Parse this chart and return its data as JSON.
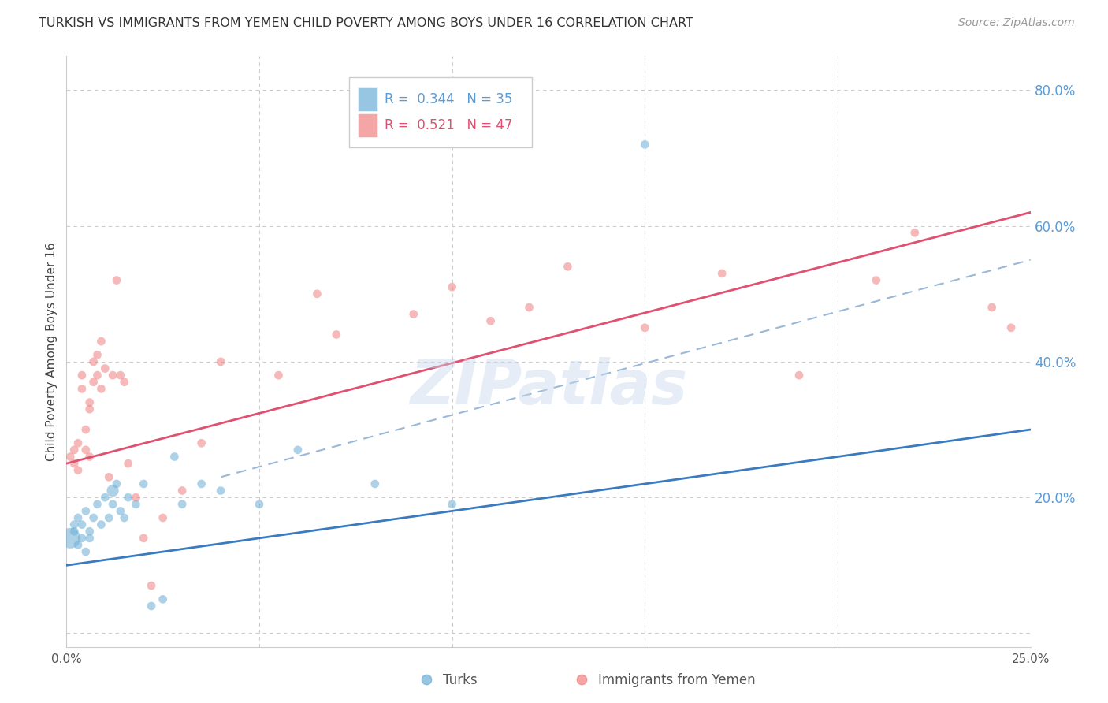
{
  "title": "TURKISH VS IMMIGRANTS FROM YEMEN CHILD POVERTY AMONG BOYS UNDER 16 CORRELATION CHART",
  "source": "Source: ZipAtlas.com",
  "ylabel": "Child Poverty Among Boys Under 16",
  "xlim": [
    0.0,
    0.25
  ],
  "ylim": [
    -0.02,
    0.85
  ],
  "yticks": [
    0.0,
    0.2,
    0.4,
    0.6,
    0.8
  ],
  "ytick_labels": [
    "",
    "20.0%",
    "40.0%",
    "60.0%",
    "80.0%"
  ],
  "legend_turks_R": "0.344",
  "legend_turks_N": "35",
  "legend_yemen_R": "0.521",
  "legend_yemen_N": "47",
  "turks_color": "#6baed6",
  "yemen_color": "#f08080",
  "turks_line_color": "#3a7abf",
  "yemen_line_color": "#e05070",
  "dashed_line_color": "#9ab8d8",
  "background_color": "#ffffff",
  "grid_color": "#cccccc",
  "watermark": "ZIPatlas",
  "turks_line_x0": 0.0,
  "turks_line_y0": 0.1,
  "turks_line_x1": 0.25,
  "turks_line_y1": 0.3,
  "dashed_line_x0": 0.04,
  "dashed_line_y0": 0.23,
  "dashed_line_x1": 0.25,
  "dashed_line_y1": 0.55,
  "yemen_line_x0": 0.0,
  "yemen_line_y0": 0.25,
  "yemen_line_x1": 0.25,
  "yemen_line_y1": 0.62,
  "turks_x": [
    0.001,
    0.002,
    0.002,
    0.003,
    0.003,
    0.004,
    0.004,
    0.005,
    0.005,
    0.006,
    0.006,
    0.007,
    0.008,
    0.009,
    0.01,
    0.011,
    0.012,
    0.012,
    0.013,
    0.014,
    0.015,
    0.016,
    0.018,
    0.02,
    0.022,
    0.025,
    0.028,
    0.03,
    0.035,
    0.04,
    0.05,
    0.06,
    0.08,
    0.1,
    0.15
  ],
  "turks_y": [
    0.14,
    0.15,
    0.16,
    0.13,
    0.17,
    0.14,
    0.16,
    0.12,
    0.18,
    0.15,
    0.14,
    0.17,
    0.19,
    0.16,
    0.2,
    0.17,
    0.21,
    0.19,
    0.22,
    0.18,
    0.17,
    0.2,
    0.19,
    0.22,
    0.04,
    0.05,
    0.26,
    0.19,
    0.22,
    0.21,
    0.19,
    0.27,
    0.22,
    0.19,
    0.72
  ],
  "turks_size": [
    350,
    60,
    60,
    60,
    60,
    60,
    60,
    60,
    60,
    60,
    60,
    60,
    60,
    60,
    60,
    60,
    120,
    60,
    60,
    60,
    60,
    60,
    60,
    60,
    60,
    60,
    60,
    60,
    60,
    60,
    60,
    60,
    60,
    60,
    60
  ],
  "yemen_x": [
    0.001,
    0.002,
    0.002,
    0.003,
    0.003,
    0.004,
    0.004,
    0.005,
    0.005,
    0.006,
    0.006,
    0.006,
    0.007,
    0.007,
    0.008,
    0.008,
    0.009,
    0.009,
    0.01,
    0.011,
    0.012,
    0.013,
    0.014,
    0.015,
    0.016,
    0.018,
    0.02,
    0.022,
    0.025,
    0.03,
    0.035,
    0.04,
    0.055,
    0.065,
    0.07,
    0.09,
    0.1,
    0.11,
    0.12,
    0.13,
    0.15,
    0.17,
    0.19,
    0.21,
    0.22,
    0.24,
    0.245
  ],
  "yemen_y": [
    0.26,
    0.25,
    0.27,
    0.24,
    0.28,
    0.38,
    0.36,
    0.27,
    0.3,
    0.33,
    0.34,
    0.26,
    0.37,
    0.4,
    0.38,
    0.41,
    0.43,
    0.36,
    0.39,
    0.23,
    0.38,
    0.52,
    0.38,
    0.37,
    0.25,
    0.2,
    0.14,
    0.07,
    0.17,
    0.21,
    0.28,
    0.4,
    0.38,
    0.5,
    0.44,
    0.47,
    0.51,
    0.46,
    0.48,
    0.54,
    0.45,
    0.53,
    0.38,
    0.52,
    0.59,
    0.48,
    0.45
  ],
  "yemen_size": [
    60,
    60,
    60,
    60,
    60,
    60,
    60,
    60,
    60,
    60,
    60,
    60,
    60,
    60,
    60,
    60,
    60,
    60,
    60,
    60,
    60,
    60,
    60,
    60,
    60,
    60,
    60,
    60,
    60,
    60,
    60,
    60,
    60,
    60,
    60,
    60,
    60,
    60,
    60,
    60,
    60,
    60,
    60,
    60,
    60,
    60,
    60
  ]
}
